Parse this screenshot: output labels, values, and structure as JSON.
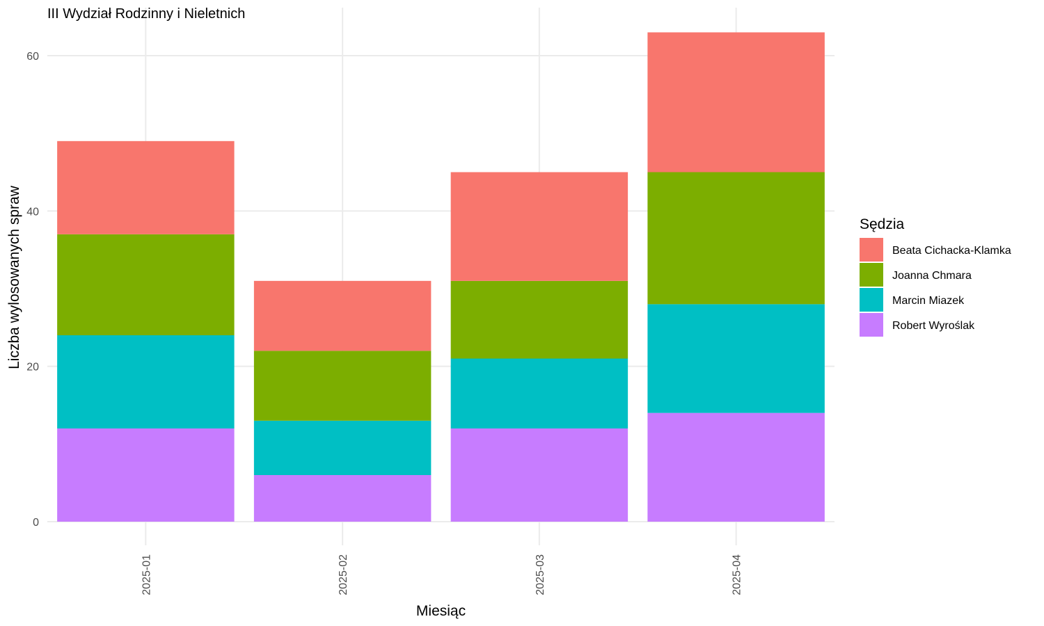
{
  "chart_data": {
    "type": "bar",
    "stacked": true,
    "title": "III Wydział Rodzinny i Nieletnich",
    "xlabel": "Miesiąc",
    "ylabel": "Liczba wylosowanych spraw",
    "categories": [
      "2025-01",
      "2025-02",
      "2025-03",
      "2025-04"
    ],
    "ylim": [
      0,
      65
    ],
    "yticks": [
      0,
      20,
      40,
      60
    ],
    "grid": true,
    "legend": {
      "title": "Sędzia",
      "position": "right"
    },
    "series": [
      {
        "name": "Robert Wyroślak",
        "values": [
          12,
          6,
          12,
          14
        ],
        "color": "#C77CFF"
      },
      {
        "name": "Marcin Miazek",
        "values": [
          12,
          7,
          9,
          14
        ],
        "color": "#00BFC4"
      },
      {
        "name": "Joanna Chmara",
        "values": [
          13,
          9,
          10,
          17
        ],
        "color": "#7CAE00"
      },
      {
        "name": "Beata Cichacka-Klamka",
        "values": [
          12,
          9,
          14,
          18
        ],
        "color": "#F8766D"
      }
    ],
    "legend_order": [
      "Beata Cichacka-Klamka",
      "Joanna Chmara",
      "Marcin Miazek",
      "Robert Wyroślak"
    ]
  }
}
